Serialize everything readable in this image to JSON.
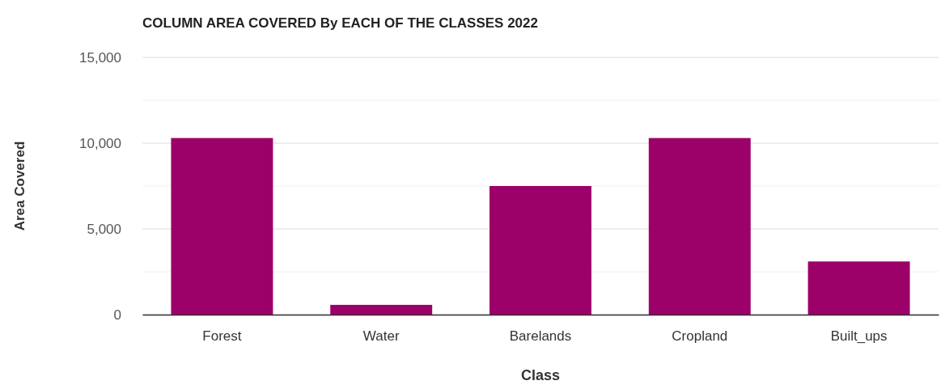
{
  "chart_data": {
    "type": "bar",
    "title": "COLUMN AREA COVERED By EACH OF THE CLASSES 2022",
    "xlabel": "Class",
    "ylabel": "Area Covered",
    "categories": [
      "Forest",
      "Water",
      "Barelands",
      "Cropland",
      "Built_ups"
    ],
    "values": [
      10300,
      570,
      7500,
      10300,
      3100
    ],
    "color": "#9c0069",
    "ylim": [
      0,
      15000
    ],
    "yticks": [
      0,
      {
        "value": 2500,
        "label": null
      },
      {
        "value": 5000,
        "label": "5,000"
      },
      {
        "value": 7500,
        "label": null
      },
      {
        "value": 10000,
        "label": "10,000"
      },
      {
        "value": 12500,
        "label": null
      },
      {
        "value": 15000,
        "label": "15,000"
      }
    ],
    "grid": true
  }
}
